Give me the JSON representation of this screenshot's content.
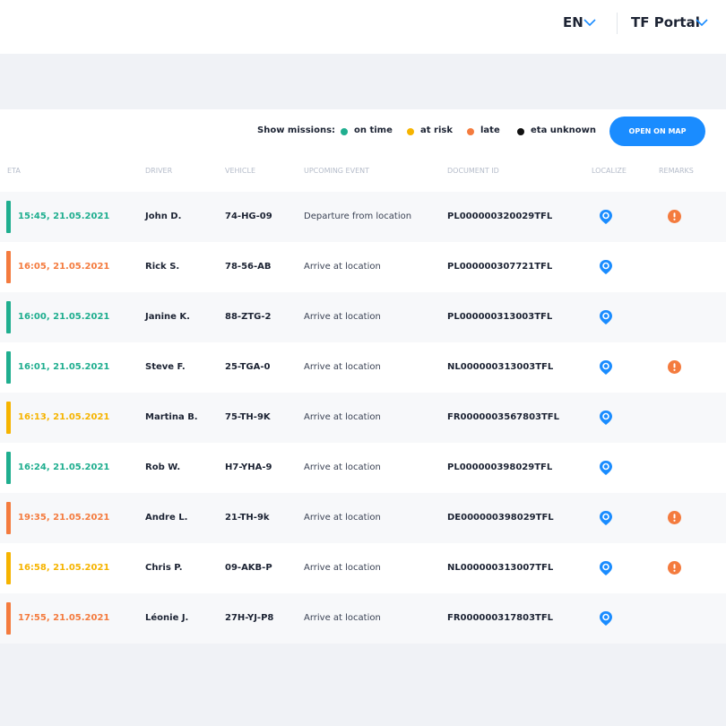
{
  "header": {
    "language": "EN",
    "portal": "TF Portal"
  },
  "toolbar": {
    "label": "Show missions:",
    "legend": [
      {
        "label": "on time",
        "color": "#1fae8f"
      },
      {
        "label": "at risk",
        "color": "#f6b400"
      },
      {
        "label": "late",
        "color": "#f47b3e"
      },
      {
        "label": "eta unknown",
        "color": "#111111"
      }
    ],
    "button": "OPEN ON MAP"
  },
  "table": {
    "columns": [
      "ETA",
      "DRIVER",
      "VEHICLE",
      "UPCOMING EVENT",
      "DOCUMENT ID",
      "LOCALIZE",
      "REMARKS"
    ],
    "rows": [
      {
        "eta": "15:45, 21.05.2021",
        "driver": "John D.",
        "vehicle": "74-HG-09",
        "event": "Departure from location",
        "document": "PL000000320029TFL",
        "color": "#1fae8f",
        "remark": true
      },
      {
        "eta": "16:05, 21.05.2021",
        "driver": "Rick S.",
        "vehicle": "78-56-AB",
        "event": "Arrive at location",
        "document": "PL000000307721TFL",
        "color": "#f47b3e",
        "remark": false
      },
      {
        "eta": "16:00, 21.05.2021",
        "driver": "Janine K.",
        "vehicle": "88-ZTG-2",
        "event": "Arrive at location",
        "document": "PL000000313003TFL",
        "color": "#1fae8f",
        "remark": false
      },
      {
        "eta": "16:01, 21.05.2021",
        "driver": "Steve F.",
        "vehicle": "25-TGA-0",
        "event": "Arrive at location",
        "document": "NL000000313003TFL",
        "color": "#1fae8f",
        "remark": true
      },
      {
        "eta": "16:13, 21.05.2021",
        "driver": "Martina B.",
        "vehicle": "75-TH-9K",
        "event": "Arrive at location",
        "document": "FR0000003567803TFL",
        "color": "#f6b400",
        "remark": false
      },
      {
        "eta": "16:24, 21.05.2021",
        "driver": "Rob W.",
        "vehicle": "H7-YHA-9",
        "event": "Arrive at location",
        "document": "PL000000398029TFL",
        "color": "#1fae8f",
        "remark": false
      },
      {
        "eta": "19:35, 21.05.2021",
        "driver": "Andre L.",
        "vehicle": "21-TH-9k",
        "event": "Arrive at location",
        "document": "DE000000398029TFL",
        "color": "#f47b3e",
        "remark": true
      },
      {
        "eta": "16:58, 21.05.2021",
        "driver": "Chris P.",
        "vehicle": "09-AKB-P",
        "event": "Arrive at location",
        "document": "NL000000313007TFL",
        "color": "#f6b400",
        "remark": true
      },
      {
        "eta": "17:55, 21.05.2021",
        "driver": "Léonie J.",
        "vehicle": "27H-YJ-P8",
        "event": "Arrive at location",
        "document": "FR000000317803TFL",
        "color": "#f47b3e",
        "remark": false
      }
    ]
  }
}
